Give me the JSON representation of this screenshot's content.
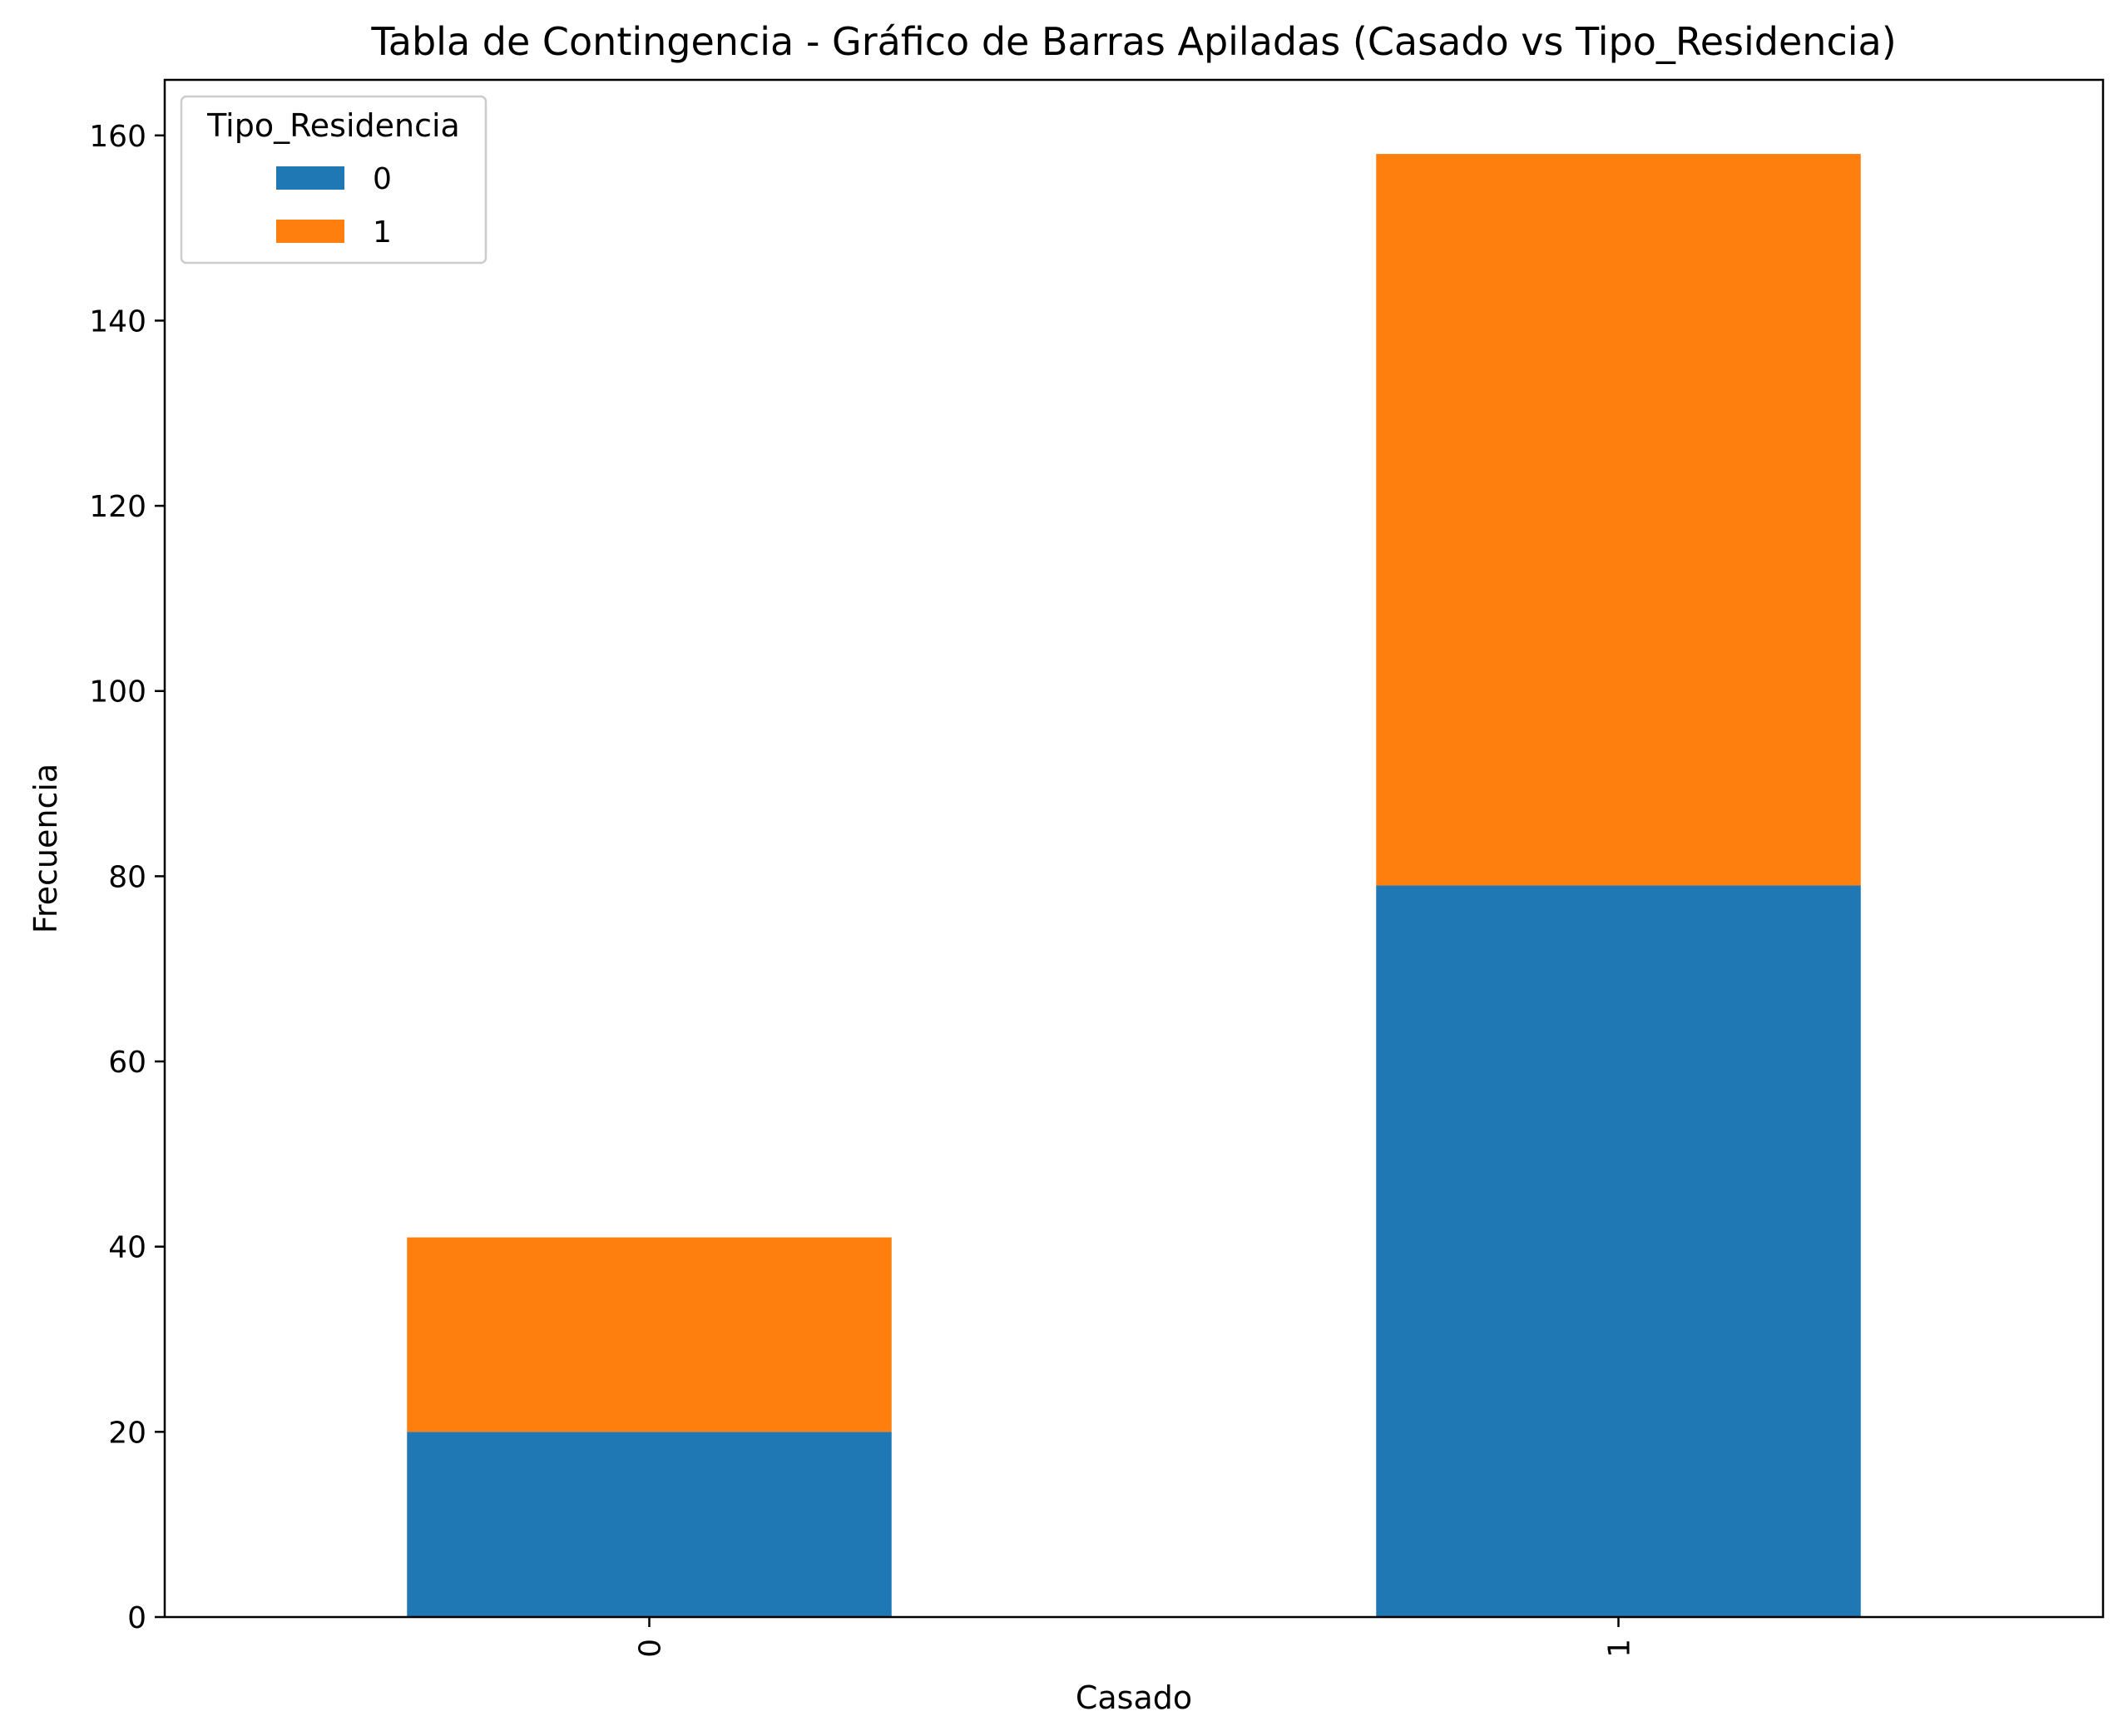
{
  "chart_data": {
    "type": "bar",
    "stacked": true,
    "title": "Tabla de Contingencia - Gráfico de Barras Apiladas (Casado vs Tipo_Residencia)",
    "xlabel": "Casado",
    "ylabel": "Frecuencia",
    "categories": [
      "0",
      "1"
    ],
    "yticks": [
      "0",
      "20",
      "40",
      "60",
      "80",
      "100",
      "120",
      "140",
      "160"
    ],
    "ylim": [
      0,
      166
    ],
    "grid": false,
    "legend": {
      "title": "Tipo_Residencia",
      "placement": "top-left"
    },
    "series": [
      {
        "name": "0",
        "color": "#1f77b4",
        "values": [
          20,
          79
        ]
      },
      {
        "name": "1",
        "color": "#ff7f0e",
        "values": [
          21,
          79
        ]
      }
    ]
  }
}
